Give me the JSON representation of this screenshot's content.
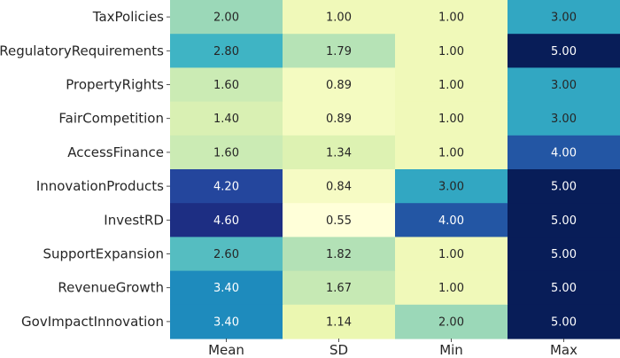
{
  "chart_data": {
    "type": "heatmap",
    "title": "",
    "xlabel": "",
    "ylabel": "",
    "columns": [
      "Mean",
      "SD",
      "Min",
      "Max"
    ],
    "rows": [
      "TaxPolicies",
      "RegulatoryRequirements",
      "PropertyRights",
      "FairCompetition",
      "AccessFinance",
      "InnovationProducts",
      "InvestRD",
      "SupportExpansion",
      "RevenueGrowth",
      "GovImpactInnovation"
    ],
    "values": [
      [
        2.0,
        1.0,
        1.0,
        3.0
      ],
      [
        2.8,
        1.79,
        1.0,
        5.0
      ],
      [
        1.6,
        0.89,
        1.0,
        3.0
      ],
      [
        1.4,
        0.89,
        1.0,
        3.0
      ],
      [
        1.6,
        1.34,
        1.0,
        4.0
      ],
      [
        4.2,
        0.84,
        3.0,
        5.0
      ],
      [
        4.6,
        0.55,
        4.0,
        5.0
      ],
      [
        2.6,
        1.82,
        1.0,
        5.0
      ],
      [
        3.4,
        1.67,
        1.0,
        5.0
      ],
      [
        3.4,
        1.14,
        2.0,
        5.0
      ]
    ],
    "value_format": "0.00",
    "colormap": "YlGnBu",
    "color_range": [
      0.55,
      5.0
    ],
    "colorbar": false
  }
}
